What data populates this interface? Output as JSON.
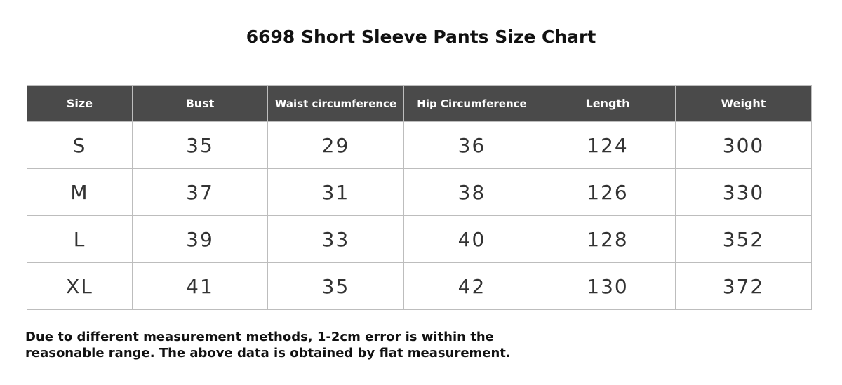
{
  "header": {
    "title": "6698 Short Sleeve Pants Size Chart"
  },
  "table": {
    "columns": [
      "Size",
      "Bust",
      "Waist circumference",
      "Hip Circumference",
      "Length",
      "Weight"
    ],
    "rows": [
      [
        "S",
        35,
        29,
        36,
        124,
        300
      ],
      [
        "M",
        37,
        31,
        38,
        126,
        330
      ],
      [
        "L",
        39,
        33,
        40,
        128,
        352
      ],
      [
        "XL",
        41,
        35,
        42,
        130,
        372
      ]
    ]
  },
  "note": {
    "lines": [
      "Due to different measurement methods, 1-2cm error is within the",
      "reasonable range. The above data is obtained by flat measurement."
    ]
  }
}
